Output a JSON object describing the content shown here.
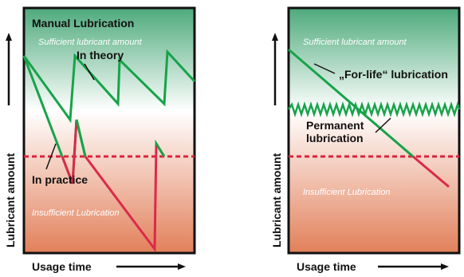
{
  "colors": {
    "green_top": "#4eaa7c",
    "mid": "#ffffff",
    "red_bottom": "#e2805a",
    "green_line": "#17a349",
    "red_line": "#d92a4a",
    "threshold": "#d9253d",
    "frame": "#111111"
  },
  "left": {
    "title": "Manual Lubrication",
    "zone_sufficient": "Sufficient lubricant amount",
    "zone_insufficient": "Insufficient Lubrication",
    "label_theory": "In theory",
    "label_practice": "In practice",
    "y_label": "Lubricant amount",
    "x_label": "Usage time"
  },
  "right": {
    "zone_sufficient": "Sufficient lubricant amount",
    "zone_insufficient": "Insufficient Lubrication",
    "label_forlife": "„For-life“ lubrication",
    "label_permanent_1": "Permanent",
    "label_permanent_2": "lubrication",
    "y_label": "Lubricant amount",
    "x_label": "Usage time"
  }
}
